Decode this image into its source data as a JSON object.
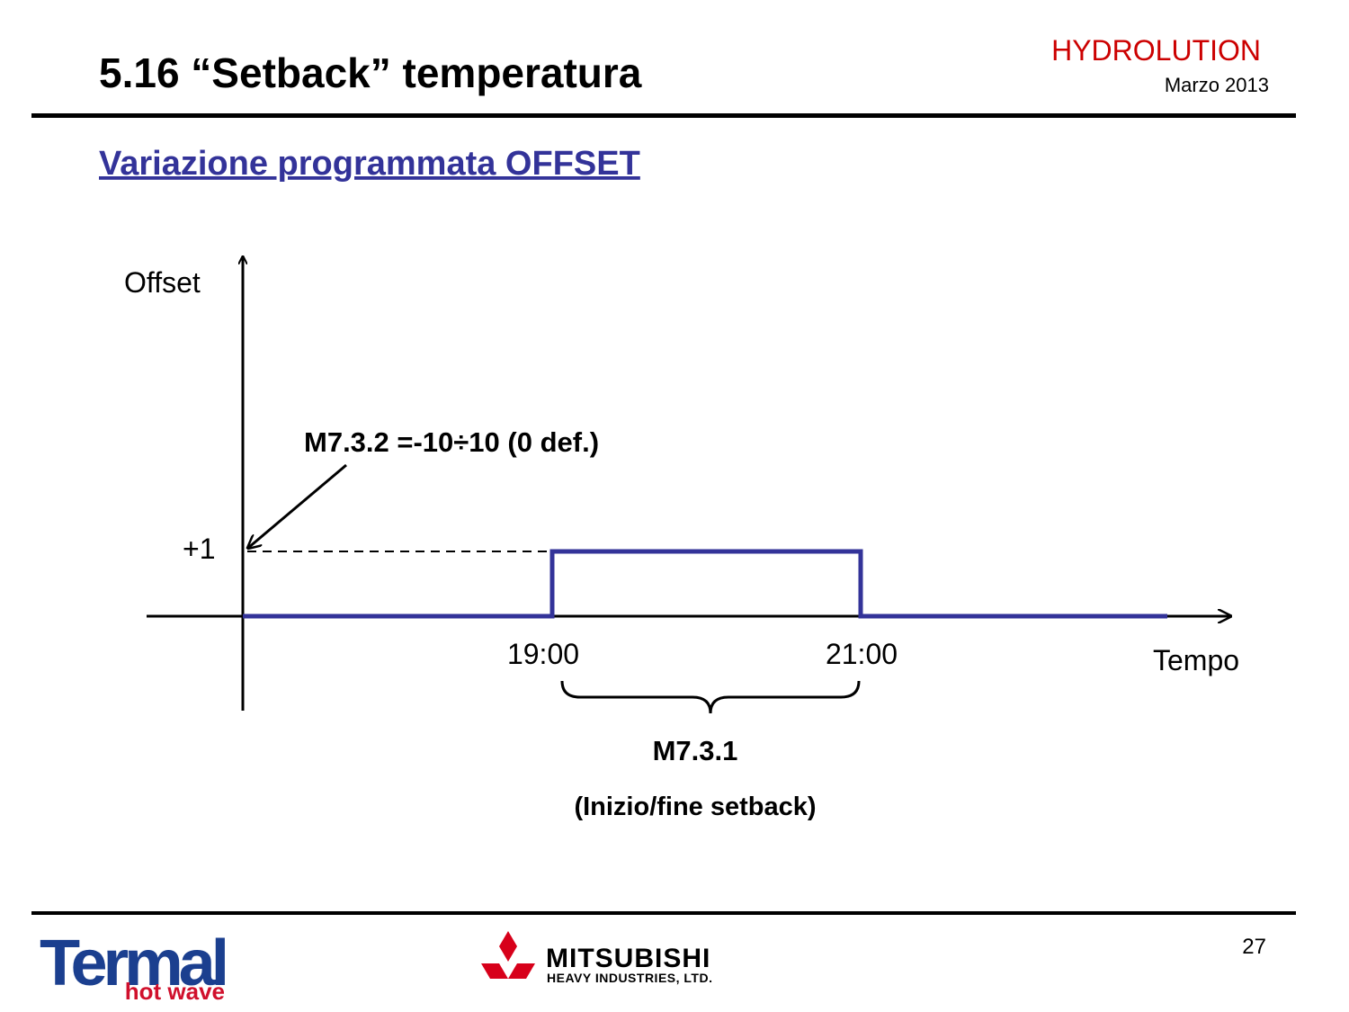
{
  "header": {
    "title": "5.16  “Setback” temperatura",
    "brand": "HYDROLUTION",
    "date": "Marzo 2013"
  },
  "subtitle": "Variazione programmata OFFSET",
  "diagram": {
    "y_label": "Offset",
    "x_label": "Tempo",
    "level": "+1",
    "annotation": "M7.3.2 =-10÷10 (0 def.)",
    "start": "19:00",
    "end": "21:00",
    "brace_label": "M7.3.1",
    "brace_note": "(Inizio/fine setback)"
  },
  "footer": {
    "page": "27",
    "logo_left": "Termal",
    "logo_left_tagline": "hot wave",
    "logo_right": "MITSUBISHI",
    "logo_right_tagline": "HEAVY INDUSTRIES, LTD."
  }
}
